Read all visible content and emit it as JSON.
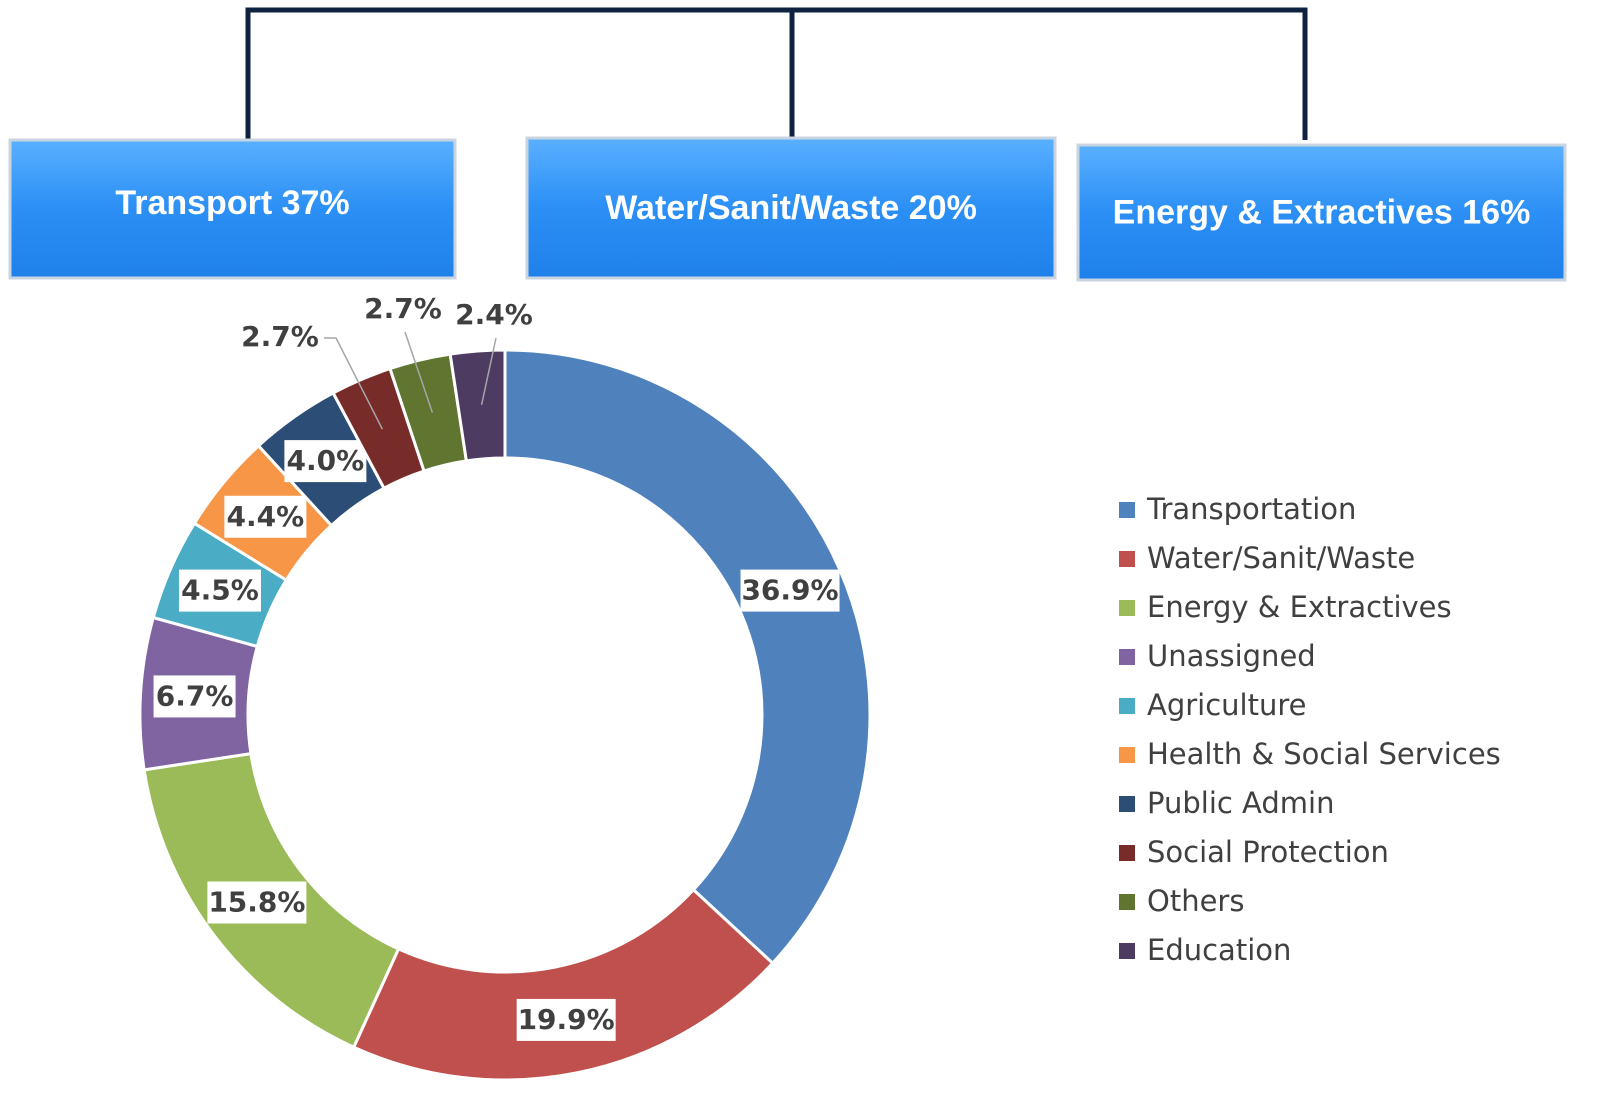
{
  "chart_data": {
    "type": "donut",
    "annotations": [
      "Transport 37%",
      "Water/Sanit/Waste 20%",
      "Energy & Extractives 16%"
    ],
    "categories": [
      "Transportation",
      "Water/Sanit/Waste",
      "Energy & Extractives",
      "Unassigned",
      "Agriculture",
      "Health & Social Services",
      "Public Admin",
      "Social Protection",
      "Others",
      "Education"
    ],
    "values": [
      36.9,
      19.9,
      15.8,
      6.7,
      4.5,
      4.4,
      4.0,
      2.7,
      2.7,
      2.4
    ],
    "value_labels": [
      "36.9%",
      "19.9%",
      "15.8%",
      "6.7%",
      "4.5%",
      "4.4%",
      "4.0%",
      "2.7%",
      "2.7%",
      "2.4%"
    ],
    "colors": [
      "#4f81bd",
      "#c0504d",
      "#9bbb59",
      "#8064a2",
      "#4bacc6",
      "#f79646",
      "#2c4d75",
      "#772c2a",
      "#5f7530",
      "#4d3b62"
    ],
    "legend": "right"
  }
}
